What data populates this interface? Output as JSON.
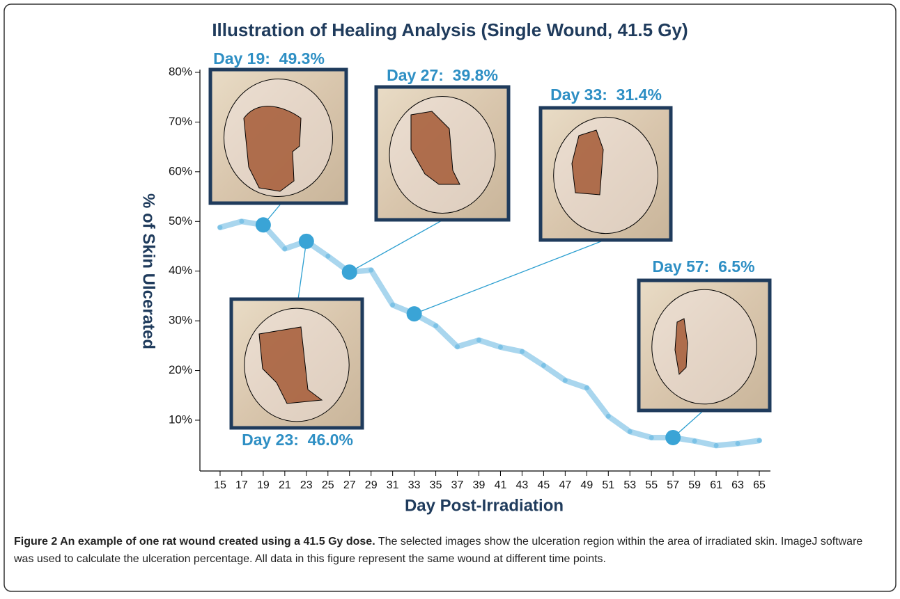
{
  "chart_data": {
    "type": "line",
    "title": "Illustration of Healing Analysis (Single Wound, 41.5 Gy)",
    "x_label": "Day Post-Irradiation",
    "y_label": "% of Skin Ulcerated",
    "x": [
      15,
      17,
      19,
      21,
      23,
      25,
      27,
      29,
      31,
      33,
      35,
      37,
      39,
      41,
      43,
      45,
      47,
      49,
      51,
      53,
      55,
      57,
      59,
      61,
      63,
      65
    ],
    "series": [
      {
        "color": "#a9d6ee",
        "values": [
          48.8,
          50.0,
          49.3,
          44.5,
          46.0,
          43.0,
          39.8,
          40.2,
          33.2,
          31.4,
          29.0,
          24.8,
          26.1,
          24.7,
          23.8,
          21.0,
          18.0,
          16.5,
          10.8,
          7.7,
          6.5,
          6.5,
          5.8,
          4.9,
          5.3,
          5.9
        ]
      }
    ],
    "xlim": [
      13,
      66
    ],
    "ylim": [
      0,
      80
    ],
    "xticks": [
      15,
      17,
      19,
      21,
      23,
      25,
      27,
      29,
      31,
      33,
      35,
      37,
      39,
      41,
      43,
      45,
      47,
      49,
      51,
      53,
      55,
      57,
      59,
      61,
      63,
      65
    ],
    "yticks": [
      {
        "value": 10,
        "label": "10%"
      },
      {
        "value": 20,
        "label": "20%"
      },
      {
        "value": 30,
        "label": "30%"
      },
      {
        "value": 40,
        "label": "40%"
      },
      {
        "value": 50,
        "label": "50%"
      },
      {
        "value": 60,
        "label": "60%"
      },
      {
        "value": 70,
        "label": "70%"
      },
      {
        "value": 80,
        "label": "80%"
      }
    ],
    "annotations": [
      {
        "x": 19,
        "y": 49.3,
        "label": "Day 19:  49.3%"
      },
      {
        "x": 23,
        "y": 46.0,
        "label": "Day 23:  46.0%"
      },
      {
        "x": 27,
        "y": 39.8,
        "label": "Day 27:  39.8%"
      },
      {
        "x": 33,
        "y": 31.4,
        "label": "Day 33:  31.4%"
      },
      {
        "x": 57,
        "y": 6.5,
        "label": "Day 57:  6.5%"
      }
    ],
    "highlight_color": "#3aa4d6"
  },
  "caption": {
    "label": "Figure 2 An example of one rat wound created using a 41.5 Gy dose.",
    "text": "The selected images show the ulceration region within the area of irradiated skin. ImageJ software was used to calculate the ulceration percentage. All data in this figure represent the same wound at different time points."
  }
}
